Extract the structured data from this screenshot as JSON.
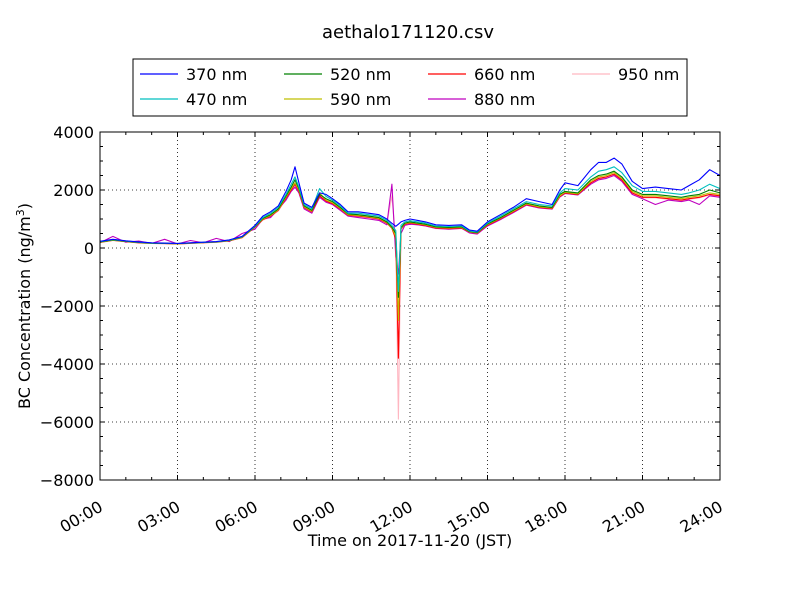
{
  "chart_data": {
    "type": "line",
    "title": "aethalo171120.csv",
    "xlabel": "Time on 2017-11-20 (JST)",
    "ylabel_main": "BC Concentration (ng/m",
    "ylabel_sup": "3",
    "ylabel_close": ")",
    "xlim": [
      0,
      24
    ],
    "ylim": [
      -8000,
      4000
    ],
    "xticks": [
      0,
      3,
      6,
      9,
      12,
      15,
      18,
      21,
      24
    ],
    "xtick_labels": [
      "00:00",
      "03:00",
      "06:00",
      "09:00",
      "12:00",
      "15:00",
      "18:00",
      "21:00",
      "24:00"
    ],
    "yticks": [
      -8000,
      -6000,
      -4000,
      -2000,
      0,
      2000,
      4000
    ],
    "ytick_labels": [
      "−8000",
      "−6000",
      "−4000",
      "−2000",
      "0",
      "2000",
      "4000"
    ],
    "grid": true,
    "legend_placement": "top, above plot",
    "x": [
      0,
      0.5,
      1,
      1.5,
      2,
      2.5,
      3,
      3.5,
      4,
      4.5,
      5,
      5.5,
      6,
      6.3,
      6.6,
      6.9,
      7.2,
      7.4,
      7.55,
      7.7,
      7.9,
      8.2,
      8.5,
      8.75,
      9,
      9.3,
      9.6,
      10,
      10.4,
      10.8,
      11.1,
      11.3,
      11.45,
      11.55,
      11.65,
      11.8,
      12,
      12.3,
      12.6,
      13,
      13.5,
      14,
      14.3,
      14.6,
      15,
      15.5,
      16,
      16.5,
      17,
      17.5,
      17.8,
      18,
      18.5,
      19,
      19.3,
      19.6,
      19.9,
      20.2,
      20.6,
      21,
      21.5,
      22,
      22.5,
      22.8,
      23.2,
      23.6,
      24
    ],
    "series": [
      {
        "name": "370 nm",
        "color": "#0000ff",
        "values": [
          230,
          300,
          250,
          210,
          180,
          170,
          160,
          180,
          200,
          220,
          280,
          400,
          780,
          1100,
          1250,
          1450,
          1950,
          2350,
          2800,
          2250,
          1550,
          1400,
          1900,
          1850,
          1700,
          1500,
          1250,
          1250,
          1200,
          1150,
          1000,
          850,
          750,
          820,
          900,
          950,
          1000,
          950,
          900,
          800,
          780,
          800,
          620,
          580,
          900,
          1150,
          1400,
          1700,
          1600,
          1500,
          2000,
          2250,
          2150,
          2700,
          2950,
          2950,
          3100,
          2900,
          2300,
          2050,
          2100,
          2050,
          2000,
          2150,
          2350,
          2700,
          2500
        ]
      },
      {
        "name": "470 nm",
        "color": "#00bfbf",
        "values": [
          220,
          290,
          240,
          200,
          170,
          165,
          155,
          175,
          195,
          215,
          270,
          390,
          760,
          1050,
          1200,
          1400,
          1850,
          2200,
          2450,
          2100,
          1500,
          1350,
          2050,
          1780,
          1650,
          1450,
          1200,
          1200,
          1150,
          1100,
          950,
          780,
          600,
          -1500,
          780,
          900,
          940,
          900,
          860,
          760,
          740,
          760,
          590,
          550,
          860,
          1100,
          1350,
          1600,
          1500,
          1450,
          1900,
          2050,
          2000,
          2450,
          2650,
          2700,
          2800,
          2600,
          2150,
          1950,
          1950,
          1900,
          1850,
          1900,
          2000,
          2200,
          2050
        ]
      },
      {
        "name": "520 nm",
        "color": "#008000",
        "values": [
          210,
          280,
          230,
          190,
          165,
          160,
          150,
          170,
          190,
          210,
          260,
          380,
          740,
          1020,
          1150,
          1350,
          1800,
          2100,
          2350,
          2050,
          1450,
          1300,
          1850,
          1700,
          1600,
          1400,
          1180,
          1150,
          1100,
          1050,
          900,
          720,
          500,
          -1700,
          700,
          860,
          900,
          860,
          820,
          730,
          710,
          730,
          570,
          530,
          830,
          1050,
          1300,
          1550,
          1450,
          1400,
          1850,
          1950,
          1900,
          2350,
          2500,
          2550,
          2650,
          2450,
          2000,
          1850,
          1850,
          1800,
          1750,
          1800,
          1850,
          2000,
          1900
        ]
      },
      {
        "name": "590 nm",
        "color": "#bfbf00",
        "values": [
          200,
          270,
          225,
          185,
          160,
          155,
          145,
          165,
          185,
          205,
          255,
          370,
          730,
          1000,
          1120,
          1320,
          1760,
          2050,
          2250,
          2000,
          1420,
          1270,
          1900,
          1650,
          1560,
          1370,
          1150,
          1120,
          1080,
          1020,
          880,
          700,
          400,
          -2500,
          680,
          840,
          880,
          840,
          800,
          710,
          690,
          710,
          560,
          520,
          810,
          1030,
          1270,
          1520,
          1420,
          1380,
          1800,
          1920,
          1870,
          2300,
          2450,
          2500,
          2600,
          2400,
          1950,
          1800,
          1800,
          1750,
          1700,
          1750,
          1800,
          1900,
          1850
        ]
      },
      {
        "name": "660 nm",
        "color": "#ff0000",
        "values": [
          195,
          265,
          220,
          180,
          158,
          152,
          142,
          162,
          182,
          200,
          250,
          360,
          720,
          980,
          1100,
          1300,
          1720,
          2000,
          2200,
          1950,
          1400,
          1250,
          1800,
          1620,
          1530,
          1350,
          1130,
          1100,
          1060,
          1000,
          860,
          680,
          300,
          -3800,
          660,
          820,
          860,
          820,
          780,
          690,
          670,
          690,
          550,
          510,
          790,
          1010,
          1250,
          1500,
          1400,
          1360,
          1780,
          1900,
          1850,
          2250,
          2400,
          2450,
          2550,
          2350,
          1900,
          1750,
          1750,
          1700,
          1650,
          1700,
          1750,
          1850,
          1800
        ]
      },
      {
        "name": "880 nm",
        "color": "#bf00bf",
        "values": [
          180,
          400,
          200,
          240,
          160,
          300,
          140,
          260,
          180,
          330,
          220,
          500,
          650,
          1000,
          1050,
          1350,
          1650,
          1950,
          2100,
          1900,
          1350,
          1200,
          1750,
          1580,
          1500,
          1300,
          1100,
          1050,
          1000,
          950,
          800,
          2200,
          -300,
          -900,
          500,
          780,
          820,
          800,
          760,
          680,
          650,
          680,
          520,
          480,
          760,
          980,
          1220,
          1480,
          1380,
          1340,
          1760,
          1880,
          1830,
          2200,
          2350,
          2400,
          2500,
          2300,
          1850,
          1700,
          1500,
          1650,
          1600,
          1650,
          1500,
          1800,
          1750
        ]
      },
      {
        "name": "950 nm",
        "color": "#ffb6c1",
        "values": [
          185,
          260,
          215,
          175,
          155,
          150,
          140,
          160,
          180,
          195,
          245,
          350,
          710,
          960,
          1080,
          1280,
          1700,
          1980,
          2150,
          1920,
          1380,
          1230,
          1780,
          1600,
          1510,
          1330,
          1120,
          1080,
          1040,
          980,
          840,
          1800,
          200,
          -5900,
          640,
          800,
          840,
          800,
          760,
          670,
          650,
          670,
          540,
          500,
          770,
          990,
          1230,
          1480,
          1380,
          1340,
          1760,
          1880,
          1830,
          2230,
          2380,
          2430,
          2530,
          2330,
          1880,
          1730,
          1730,
          1680,
          1630,
          1680,
          1730,
          1830,
          1780
        ]
      }
    ]
  }
}
